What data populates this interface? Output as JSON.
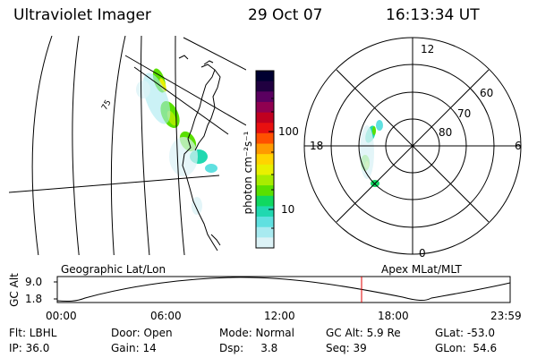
{
  "header": {
    "instrument": "Ultraviolet Imager",
    "date": "29 Oct 07",
    "time": "16:13:34 UT"
  },
  "colorbar": {
    "label": "photon cm⁻²s⁻¹",
    "ticks": [
      "100",
      "10"
    ],
    "colors": [
      "#000030",
      "#200040",
      "#5a0060",
      "#900050",
      "#c00020",
      "#e81010",
      "#ff5000",
      "#ff9a00",
      "#ffd400",
      "#e8f000",
      "#a8ec00",
      "#5ae000",
      "#10d860",
      "#20d8b0",
      "#60e0e0",
      "#a8eaf0",
      "#dcf2f6"
    ]
  },
  "polar": {
    "mlt_labels": [
      "12",
      "18",
      "6",
      "0"
    ],
    "mlat_labels": [
      "60",
      "70",
      "80"
    ]
  },
  "timeline": {
    "left_title": "Geographic Lat/Lon",
    "right_title": "Apex MLat/MLT",
    "ylabel": "GC Alt",
    "y_ticks": [
      "9.0",
      "1.8"
    ],
    "x_ticks": [
      "00:00",
      "06:00",
      "12:00",
      "18:00",
      "23:59"
    ],
    "marker_color": "#e00000"
  },
  "status": {
    "flt": "Flt: LBHL",
    "door": "Door: Open",
    "mode": "Mode: Normal",
    "gc_alt": "GC Alt: 5.9 Re",
    "glat": "GLat: -53.0",
    "ip": "IP: 36.0",
    "gain": "Gain: 14",
    "dsp": "Dsp:     3.8",
    "seq": "Seq: 39",
    "glon": "GLon:  54.6"
  }
}
